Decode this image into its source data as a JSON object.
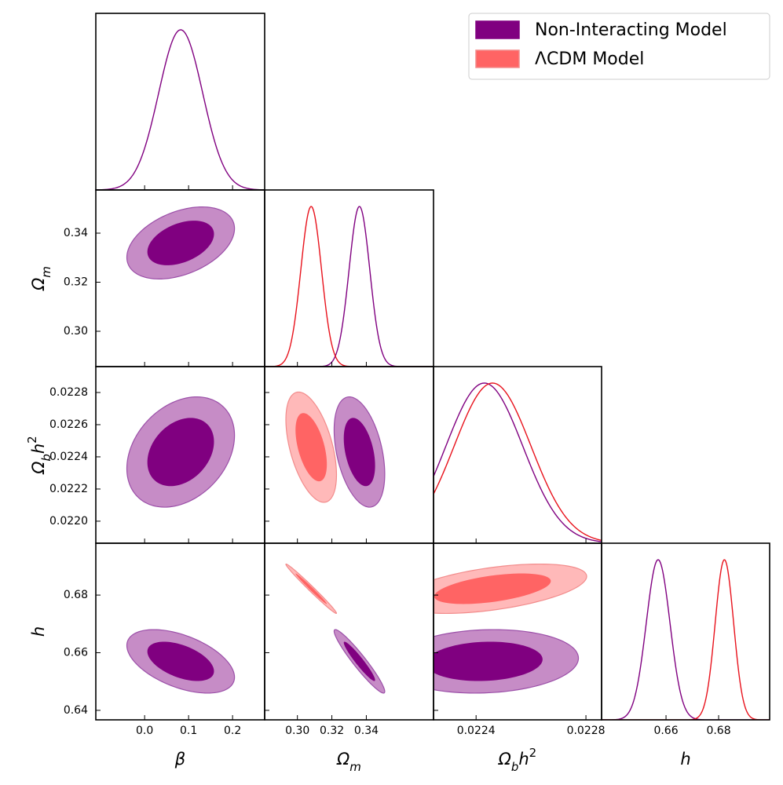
{
  "chart_data": {
    "type": "corner",
    "params": [
      {
        "label": [
          {
            "text": "β"
          }
        ],
        "xlim": [
          -0.111,
          0.273
        ],
        "xticks": [
          {
            "value": 0,
            "label": "0.0"
          },
          0.1,
          0.2
        ]
      },
      {
        "label": [
          {
            "text": "Ω"
          },
          {
            "text": "m",
            "sub": true
          }
        ],
        "xlim": [
          0.281,
          0.379
        ],
        "xticks": [
          {
            "value": 0.3,
            "label": "0.30"
          },
          0.32,
          0.34
        ],
        "ylim": [
          0.2856,
          0.3576
        ],
        "yticks": [
          {
            "value": 0.3,
            "label": "0.30"
          },
          0.32,
          0.34
        ]
      },
      {
        "label": [
          {
            "text": "Ω"
          },
          {
            "text": "b",
            "sub": true
          },
          {
            "text": "h"
          },
          {
            "text": "2",
            "sup": true
          }
        ],
        "xlim": [
          0.022245,
          0.022857
        ],
        "xticks": [
          0.0224,
          0.0228
        ],
        "ylim": [
          0.021863,
          0.022961
        ],
        "yticks": [
          {
            "value": 0.022,
            "label": "0.0220"
          },
          0.0222,
          0.0224,
          0.0226,
          0.0228
        ]
      },
      {
        "label": [
          {
            "text": "h"
          }
        ],
        "xlim": [
          0.6355,
          0.6994
        ],
        "xticks": [
          0.66,
          0.68
        ],
        "ylim": [
          0.6367,
          0.698
        ],
        "yticks": [
          0.64,
          0.66,
          0.68
        ]
      }
    ],
    "series": [
      {
        "name": "Non-Interacting Model",
        "line_color": "#800080",
        "fill_color": "#800080",
        "edge_color": "#9b4fa8",
        "mean": [
          0.082,
          0.336,
          0.02243,
          0.657
        ],
        "sigma": [
          0.05,
          0.006,
          0.00014,
          0.0045
        ],
        "corr": [
          [
            1,
            0.4,
            0.3,
            -0.5
          ],
          [
            0.4,
            1,
            -0.4,
            -0.95
          ],
          [
            0.3,
            -0.4,
            1,
            0.1
          ],
          [
            -0.5,
            -0.95,
            0.1,
            1
          ]
        ]
      },
      {
        "name": "ΛCDM Model",
        "line_color": "#e8121c",
        "fill_color": "#ff6464",
        "edge_color": "#f28c8c",
        "mean": [
          null,
          0.308,
          0.02246,
          0.6822
        ],
        "sigma": [
          null,
          0.006,
          0.00014,
          0.0035
        ],
        "corr": [
          [
            null,
            null,
            null,
            null
          ],
          [
            null,
            1,
            -0.5,
            -0.99
          ],
          [
            null,
            -0.5,
            1,
            0.5
          ],
          [
            null,
            -0.99,
            0.5,
            1
          ]
        ]
      }
    ],
    "legend": "upper right"
  }
}
